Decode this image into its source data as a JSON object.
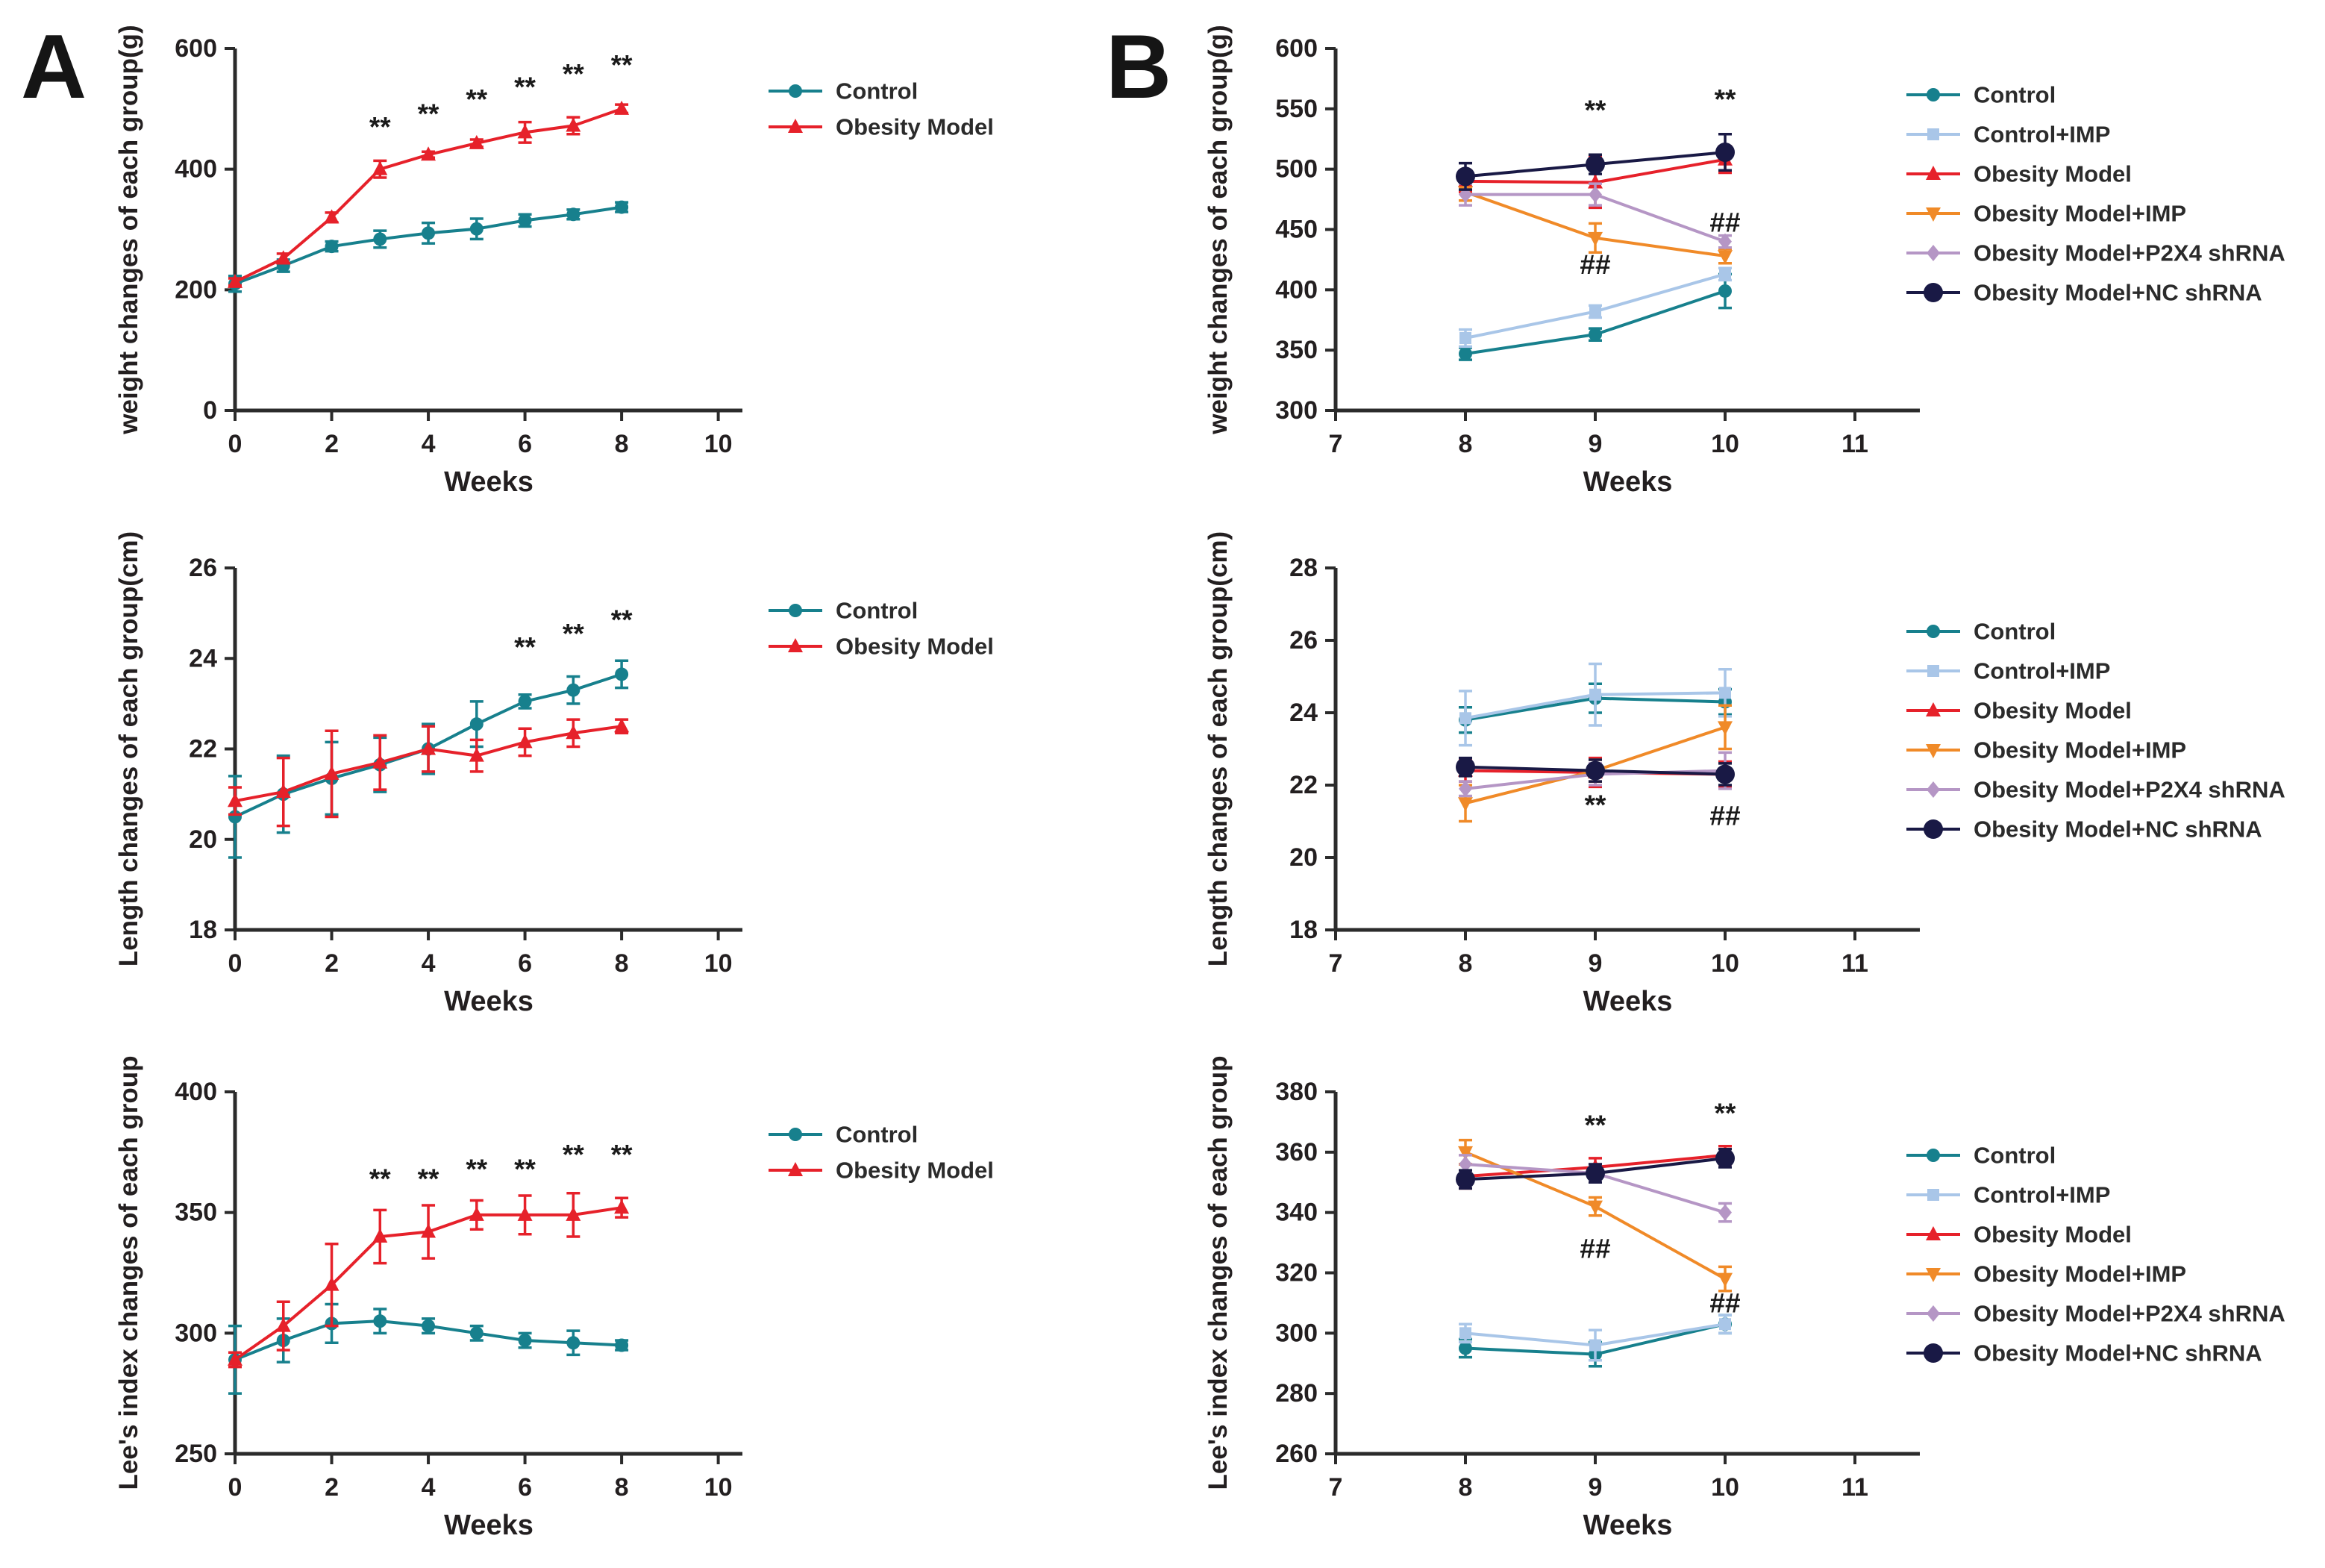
{
  "panels": {
    "a_label": "A",
    "b_label": "B"
  },
  "colors": {
    "axis": "#2b2b2b",
    "annotation": "#1a1a1a",
    "control": "#17808D",
    "control_imp": "#A9C6E8",
    "obesity_model": "#E6212A",
    "obesity_imp": "#F08A28",
    "p2x4_shrna": "#B596C5",
    "nc_shrna": "#191945"
  },
  "chart_data": [
    {
      "id": "a-weight",
      "panel": "A",
      "type": "line",
      "title": "",
      "xlabel": "Weeks",
      "ylabel": "weight changes of each group(g)",
      "xlim": [
        0,
        10.5
      ],
      "ylim": [
        0,
        600
      ],
      "xticks": [
        0,
        2,
        4,
        6,
        8,
        10
      ],
      "yticks": [
        0,
        200,
        400,
        600
      ],
      "x": [
        0,
        1,
        2,
        3,
        4,
        5,
        6,
        7,
        8
      ],
      "series": [
        {
          "name": "Control",
          "color_key": "control",
          "marker": "circle",
          "values": [
            210,
            240,
            272,
            284,
            294,
            301,
            315,
            325,
            337
          ],
          "errors": [
            13,
            10,
            8,
            14,
            17,
            17,
            10,
            8,
            8
          ]
        },
        {
          "name": "Obesity Model",
          "color_key": "obesity_model",
          "marker": "triangle-up",
          "values": [
            213,
            252,
            320,
            400,
            424,
            443,
            461,
            472,
            500
          ],
          "errors": [
            6,
            8,
            8,
            14,
            5,
            6,
            17,
            14,
            7
          ]
        }
      ],
      "annotations": [
        {
          "text": "**",
          "x": 3,
          "y": 470
        },
        {
          "text": "**",
          "x": 4,
          "y": 492
        },
        {
          "text": "**",
          "x": 5,
          "y": 516
        },
        {
          "text": "**",
          "x": 6,
          "y": 536
        },
        {
          "text": "**",
          "x": 7,
          "y": 558
        },
        {
          "text": "**",
          "x": 8,
          "y": 573
        }
      ]
    },
    {
      "id": "a-length",
      "panel": "A",
      "type": "line",
      "title": "",
      "xlabel": "Weeks",
      "ylabel": "Length changes of each group(cm)",
      "xlim": [
        0,
        10.5
      ],
      "ylim": [
        18,
        26
      ],
      "xticks": [
        0,
        2,
        4,
        6,
        8,
        10
      ],
      "yticks": [
        18,
        20,
        22,
        24,
        26
      ],
      "x": [
        0,
        1,
        2,
        3,
        4,
        5,
        6,
        7,
        8
      ],
      "series": [
        {
          "name": "Control",
          "color_key": "control",
          "marker": "circle",
          "values": [
            20.5,
            21.0,
            21.35,
            21.65,
            22.0,
            22.55,
            23.05,
            23.3,
            23.65
          ],
          "errors": [
            0.9,
            0.85,
            0.8,
            0.6,
            0.55,
            0.5,
            0.15,
            0.3,
            0.3
          ]
        },
        {
          "name": "Obesity Model",
          "color_key": "obesity_model",
          "marker": "triangle-up",
          "values": [
            20.85,
            21.05,
            21.45,
            21.7,
            22.0,
            21.85,
            22.15,
            22.35,
            22.5
          ],
          "errors": [
            0.3,
            0.75,
            0.95,
            0.6,
            0.5,
            0.35,
            0.3,
            0.3,
            0.15
          ]
        }
      ],
      "annotations": [
        {
          "text": "**",
          "x": 6,
          "y": 24.25
        },
        {
          "text": "**",
          "x": 7,
          "y": 24.55
        },
        {
          "text": "**",
          "x": 8,
          "y": 24.85
        }
      ]
    },
    {
      "id": "a-lees-index",
      "panel": "A",
      "type": "line",
      "title": "",
      "xlabel": "Weeks",
      "ylabel": "Lee's index changes of each group",
      "xlim": [
        0,
        10.5
      ],
      "ylim": [
        250,
        400
      ],
      "xticks": [
        0,
        2,
        4,
        6,
        8,
        10
      ],
      "yticks": [
        250,
        300,
        350,
        400
      ],
      "x": [
        0,
        1,
        2,
        3,
        4,
        5,
        6,
        7,
        8
      ],
      "series": [
        {
          "name": "Control",
          "color_key": "control",
          "marker": "circle",
          "values": [
            289,
            297,
            304,
            305,
            303,
            300,
            297,
            296,
            295
          ],
          "errors": [
            14,
            9,
            8,
            5,
            3,
            3,
            3,
            5,
            2
          ]
        },
        {
          "name": "Obesity Model",
          "color_key": "obesity_model",
          "marker": "triangle-up",
          "values": [
            289,
            303,
            320,
            340,
            342,
            349,
            349,
            349,
            352
          ],
          "errors": [
            3,
            10,
            17,
            11,
            11,
            6,
            8,
            9,
            4
          ]
        }
      ],
      "annotations": [
        {
          "text": "**",
          "x": 3,
          "y": 364
        },
        {
          "text": "**",
          "x": 4,
          "y": 364
        },
        {
          "text": "**",
          "x": 5,
          "y": 368
        },
        {
          "text": "**",
          "x": 6,
          "y": 368
        },
        {
          "text": "**",
          "x": 7,
          "y": 374
        },
        {
          "text": "**",
          "x": 8,
          "y": 374
        }
      ]
    },
    {
      "id": "b-weight",
      "panel": "B",
      "type": "line",
      "title": "",
      "xlabel": "Weeks",
      "ylabel": "weight changes of each group(g)",
      "xlim": [
        7,
        11.5
      ],
      "ylim": [
        300,
        600
      ],
      "xticks": [
        7,
        8,
        9,
        10,
        11
      ],
      "yticks": [
        300,
        350,
        400,
        450,
        500,
        550,
        600
      ],
      "x": [
        8,
        9,
        10
      ],
      "series": [
        {
          "name": "Control",
          "color_key": "control",
          "marker": "circle",
          "values": [
            347,
            363,
            399
          ],
          "errors": [
            5,
            5,
            14
          ]
        },
        {
          "name": "Control+IMP",
          "color_key": "control_imp",
          "marker": "square",
          "values": [
            360,
            382,
            413
          ],
          "errors": [
            7,
            5,
            5
          ]
        },
        {
          "name": "Obesity Model",
          "color_key": "obesity_model",
          "marker": "triangle-up",
          "values": [
            490,
            489,
            508
          ],
          "errors": [
            9,
            21,
            11
          ]
        },
        {
          "name": "Obesity Model+IMP",
          "color_key": "obesity_imp",
          "marker": "triangle-down",
          "values": [
            481,
            443,
            428
          ],
          "errors": [
            7,
            12,
            6
          ]
        },
        {
          "name": "Obesity Model+P2X4 shRNA",
          "color_key": "p2x4_shrna",
          "marker": "diamond",
          "values": [
            479,
            479,
            440
          ],
          "errors": [
            9,
            9,
            5
          ]
        },
        {
          "name": "Obesity Model+NC shRNA",
          "color_key": "nc_shrna",
          "marker": "circle-lg",
          "values": [
            494,
            504,
            514
          ],
          "errors": [
            11,
            8,
            15
          ]
        }
      ],
      "annotations": [
        {
          "text": "**",
          "x": 9,
          "y": 549
        },
        {
          "text": "**",
          "x": 10,
          "y": 558
        },
        {
          "text": "##",
          "x": 9,
          "y": 421
        },
        {
          "text": "##",
          "x": 10,
          "y": 456
        }
      ]
    },
    {
      "id": "b-length",
      "panel": "B",
      "type": "line",
      "title": "",
      "xlabel": "Weeks",
      "ylabel": "Length changes of each group(cm)",
      "xlim": [
        7,
        11.5
      ],
      "ylim": [
        18,
        28
      ],
      "xticks": [
        7,
        8,
        9,
        10,
        11
      ],
      "yticks": [
        18,
        20,
        22,
        24,
        26,
        28
      ],
      "x": [
        8,
        9,
        10
      ],
      "series": [
        {
          "name": "Control",
          "color_key": "control",
          "marker": "circle",
          "values": [
            23.8,
            24.4,
            24.3
          ],
          "errors": [
            0.35,
            0.4,
            0.35
          ]
        },
        {
          "name": "Control+IMP",
          "color_key": "control_imp",
          "marker": "square",
          "values": [
            23.85,
            24.5,
            24.55
          ],
          "errors": [
            0.75,
            0.85,
            0.65
          ]
        },
        {
          "name": "Obesity Model",
          "color_key": "obesity_model",
          "marker": "triangle-up",
          "values": [
            22.4,
            22.35,
            22.3
          ],
          "errors": [
            0.3,
            0.4,
            0.35
          ]
        },
        {
          "name": "Obesity Model+IMP",
          "color_key": "obesity_imp",
          "marker": "triangle-down",
          "values": [
            21.5,
            22.4,
            23.6
          ],
          "errors": [
            0.5,
            0.3,
            0.6
          ]
        },
        {
          "name": "Obesity Model+P2X4 shRNA",
          "color_key": "p2x4_shrna",
          "marker": "diamond",
          "values": [
            21.9,
            22.3,
            22.4
          ],
          "errors": [
            0.2,
            0.3,
            0.5
          ]
        },
        {
          "name": "Obesity Model+NC shRNA",
          "color_key": "nc_shrna",
          "marker": "circle-lg",
          "values": [
            22.5,
            22.4,
            22.3
          ],
          "errors": [
            0.25,
            0.3,
            0.3
          ]
        }
      ],
      "annotations": [
        {
          "text": "**",
          "x": 9,
          "y": 21.45
        },
        {
          "text": "##",
          "x": 10,
          "y": 21.15
        }
      ]
    },
    {
      "id": "b-lees-index",
      "panel": "B",
      "type": "line",
      "title": "",
      "xlabel": "Weeks",
      "ylabel": "Lee's index changes of each group",
      "xlim": [
        7,
        11.5
      ],
      "ylim": [
        260,
        380
      ],
      "xticks": [
        7,
        8,
        9,
        10,
        11
      ],
      "yticks": [
        260,
        280,
        300,
        320,
        340,
        360,
        380
      ],
      "x": [
        8,
        9,
        10
      ],
      "series": [
        {
          "name": "Control",
          "color_key": "control",
          "marker": "circle",
          "values": [
            295,
            293,
            303
          ],
          "errors": [
            3,
            4,
            3
          ]
        },
        {
          "name": "Control+IMP",
          "color_key": "control_imp",
          "marker": "square",
          "values": [
            300,
            296,
            303
          ],
          "errors": [
            3,
            5,
            3
          ]
        },
        {
          "name": "Obesity Model",
          "color_key": "obesity_model",
          "marker": "triangle-up",
          "values": [
            352,
            355,
            359
          ],
          "errors": [
            4,
            3,
            3
          ]
        },
        {
          "name": "Obesity Model+IMP",
          "color_key": "obesity_imp",
          "marker": "triangle-down",
          "values": [
            360,
            342,
            318
          ],
          "errors": [
            4,
            3,
            4
          ]
        },
        {
          "name": "Obesity Model+P2X4 shRNA",
          "color_key": "p2x4_shrna",
          "marker": "diamond",
          "values": [
            356,
            353,
            340
          ],
          "errors": [
            3,
            3,
            3
          ]
        },
        {
          "name": "Obesity Model+NC shRNA",
          "color_key": "nc_shrna",
          "marker": "circle-lg",
          "values": [
            351,
            353,
            358
          ],
          "errors": [
            3,
            3,
            3
          ]
        }
      ],
      "annotations": [
        {
          "text": "**",
          "x": 9,
          "y": 369
        },
        {
          "text": "**",
          "x": 10,
          "y": 373
        },
        {
          "text": "##",
          "x": 9,
          "y": 328
        },
        {
          "text": "##",
          "x": 10,
          "y": 310
        }
      ]
    }
  ]
}
